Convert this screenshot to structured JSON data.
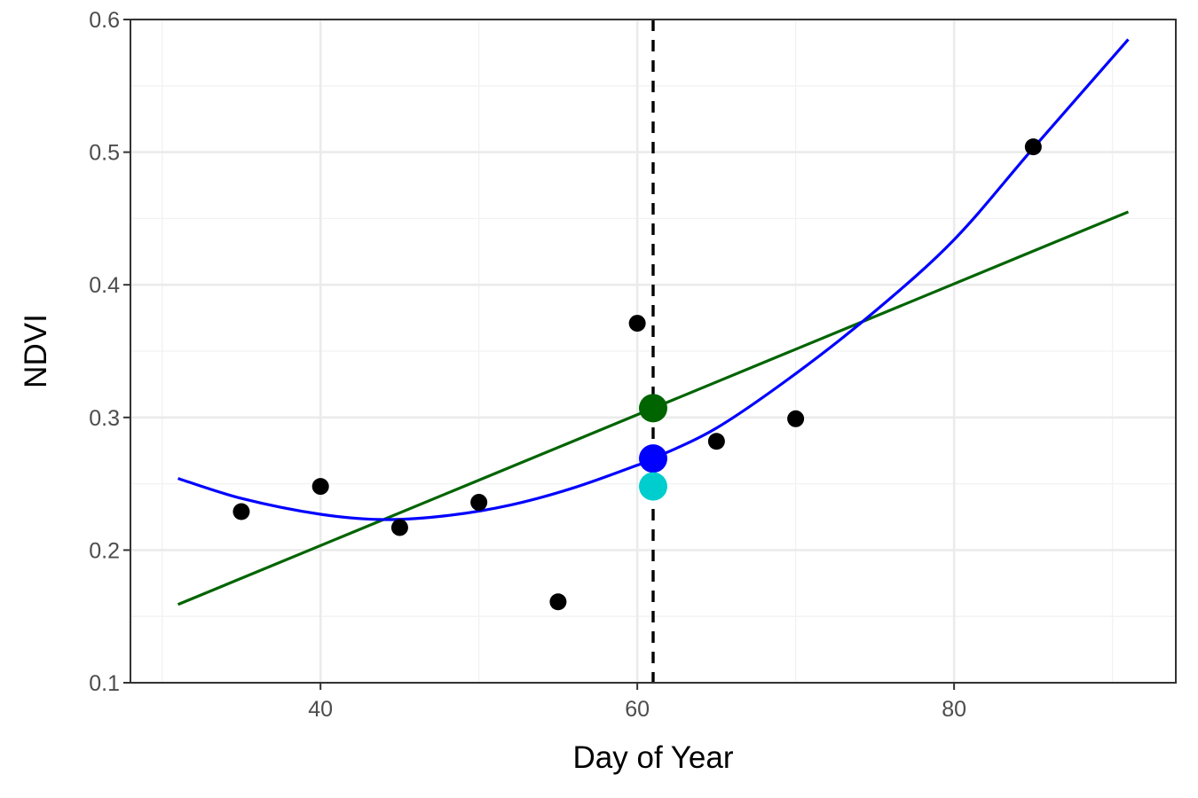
{
  "chart_data": {
    "type": "scatter",
    "title": "",
    "xlabel": "Day of Year",
    "ylabel": "NDVI",
    "xlim": [
      28,
      94
    ],
    "ylim": [
      0.1,
      0.6
    ],
    "x_ticks": [
      40,
      60,
      80
    ],
    "x_tick_labels": [
      "40",
      "60",
      "80"
    ],
    "x_minor_ticks": [
      30,
      50,
      70,
      90
    ],
    "y_ticks": [
      0.1,
      0.2,
      0.3,
      0.4,
      0.5,
      0.6
    ],
    "y_tick_labels": [
      "0.1",
      "0.2",
      "0.3",
      "0.4",
      "0.5",
      "0.6"
    ],
    "y_minor_ticks": [
      0.15,
      0.25,
      0.35,
      0.45,
      0.55
    ],
    "grid": true,
    "legend": "none",
    "colors": {
      "points": "#000000",
      "linear_fit": "#006400",
      "poly_fit": "#0000ff",
      "observed_estimate": "#00cdcd",
      "reference_line": "#000000"
    },
    "points": {
      "x": [
        35,
        40,
        45,
        50,
        55,
        60,
        65,
        70,
        85
      ],
      "y": [
        0.229,
        0.248,
        0.217,
        0.236,
        0.161,
        0.371,
        0.282,
        0.299,
        0.504
      ]
    },
    "linear_fit": {
      "x": [
        31,
        91
      ],
      "y": [
        0.159,
        0.455
      ]
    },
    "poly_fit": {
      "x": [
        31,
        35,
        40,
        44,
        48,
        52,
        56,
        60,
        61,
        65,
        70,
        75,
        80,
        85,
        91
      ],
      "y": [
        0.254,
        0.239,
        0.227,
        0.223,
        0.226,
        0.234,
        0.247,
        0.264,
        0.269,
        0.292,
        0.333,
        0.38,
        0.434,
        0.503,
        0.585
      ]
    },
    "reference_line": {
      "x": 61
    },
    "highlight_points": [
      {
        "x": 61,
        "y": 0.307,
        "color": "#006400"
      },
      {
        "x": 61,
        "y": 0.269,
        "color": "#0000ff"
      },
      {
        "x": 61,
        "y": 0.248,
        "color": "#00cdcd"
      }
    ]
  }
}
